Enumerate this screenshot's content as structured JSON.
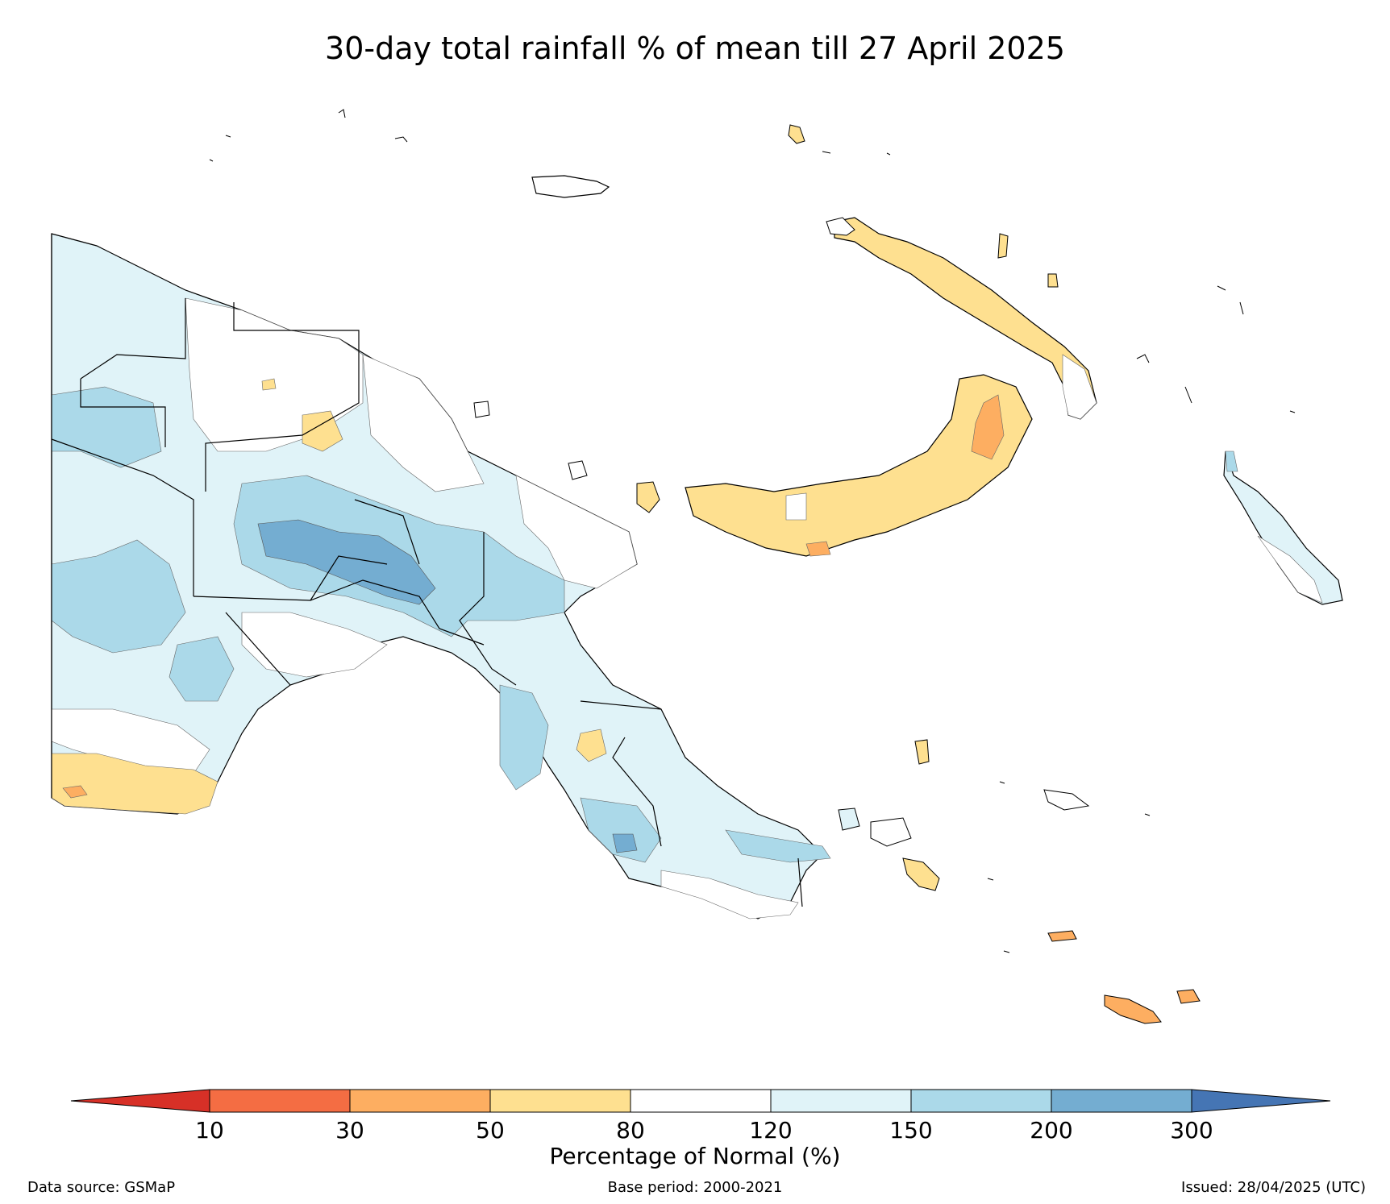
{
  "title": "30-day total rainfall % of mean till 27 April 2025",
  "colorbar": {
    "label": "Percentage of Normal (%)",
    "ticks": [
      "10",
      "30",
      "50",
      "80",
      "120",
      "150",
      "200",
      "300"
    ],
    "colors": {
      "below_10": "#d73027",
      "10_30": "#f46d43",
      "30_50": "#fdae61",
      "50_80": "#fee090",
      "80_120": "#ffffff",
      "120_150": "#e0f3f8",
      "150_200": "#abd9e9",
      "200_300": "#74add1",
      "above_300": "#4575b4"
    }
  },
  "footer": {
    "source": "Data source: GSMaP",
    "base_period": "Base period: 2000-2021",
    "issued": "Issued: 28/04/2025 (UTC)"
  }
}
